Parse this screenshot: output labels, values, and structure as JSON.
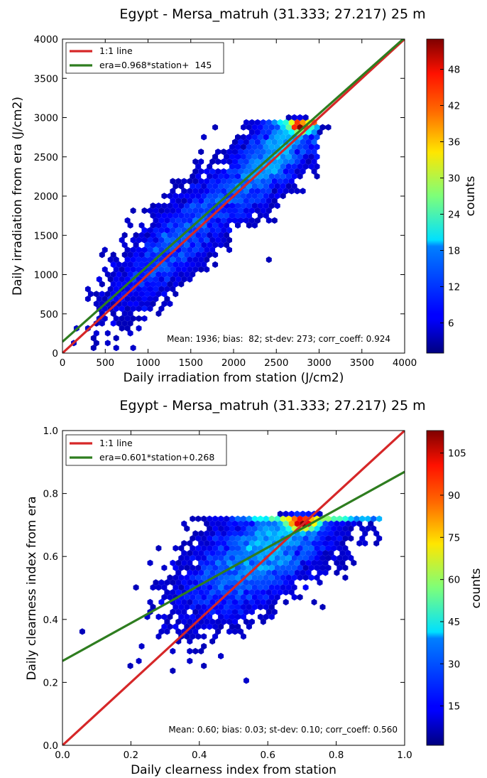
{
  "charts": [
    {
      "title": "Egypt - Mersa_matruh (31.333; 27.217) 25 m",
      "xlabel": "Daily irradiation from station (J/cm2)",
      "ylabel": "Daily irradiation from era (J/cm2)",
      "xticks": [
        "0",
        "500",
        "1000",
        "1500",
        "2000",
        "2500",
        "3000",
        "3500",
        "4000"
      ],
      "yticks": [
        "0",
        "500",
        "1000",
        "1500",
        "2000",
        "2500",
        "3000",
        "3500",
        "4000"
      ],
      "legend": [
        "1:1 line",
        "era=0.968*station+  145"
      ],
      "stats": "Mean: 1936; bias:  82; st-dev: 273; corr_coeff: 0.924",
      "colorbar_label": "counts",
      "colorbar_ticks": [
        "6",
        "12",
        "18",
        "24",
        "30",
        "36",
        "42",
        "48"
      ]
    },
    {
      "title": "Egypt - Mersa_matruh (31.333; 27.217) 25 m",
      "xlabel": "Daily clearness index from station",
      "ylabel": "Daily clearness index from era",
      "xticks": [
        "0.0",
        "0.2",
        "0.4",
        "0.6",
        "0.8",
        "1.0"
      ],
      "yticks": [
        "0.0",
        "0.2",
        "0.4",
        "0.6",
        "0.8",
        "1.0"
      ],
      "legend": [
        "1:1 line",
        "era=0.601*station+0.268"
      ],
      "stats": "Mean: 0.60; bias: 0.03; st-dev: 0.10; corr_coeff: 0.560",
      "colorbar_label": "counts",
      "colorbar_ticks": [
        "15",
        "30",
        "45",
        "60",
        "75",
        "90",
        "105"
      ]
    }
  ],
  "chart_data": [
    {
      "type": "hexbin",
      "xlim": [
        0,
        4000
      ],
      "ylim": [
        0,
        4000
      ],
      "tick_values": [
        0,
        500,
        1000,
        1500,
        2000,
        2500,
        3000,
        3500,
        4000
      ],
      "colorbar_range": [
        1,
        53
      ],
      "colorbar_tick_values": [
        6,
        12,
        18,
        24,
        30,
        36,
        42,
        48
      ],
      "lines": [
        {
          "name": "1:1 line",
          "slope": 1.0,
          "intercept": 0,
          "color": "#d62728"
        },
        {
          "name": "era=0.968*station+  145",
          "slope": 0.968,
          "intercept": 145,
          "color": "#2e7d1f"
        }
      ],
      "density_centers": [
        [
          2780,
          2880,
          53
        ],
        [
          2500,
          2600,
          22
        ],
        [
          2200,
          2300,
          15
        ],
        [
          1900,
          2000,
          11
        ],
        [
          1500,
          1550,
          9
        ],
        [
          1100,
          1150,
          12
        ]
      ]
    },
    {
      "type": "hexbin",
      "xlim": [
        0,
        1
      ],
      "ylim": [
        0,
        1
      ],
      "tick_values": [
        0,
        0.2,
        0.4,
        0.6,
        0.8,
        1.0
      ],
      "colorbar_range": [
        1,
        113
      ],
      "colorbar_tick_values": [
        15,
        30,
        45,
        60,
        75,
        90,
        105
      ],
      "lines": [
        {
          "name": "1:1 line",
          "slope": 1.0,
          "intercept": 0,
          "color": "#d62728"
        },
        {
          "name": "era=0.601*station+0.268",
          "slope": 0.601,
          "intercept": 0.268,
          "color": "#2e7d1f"
        }
      ],
      "density_centers": [
        [
          0.7,
          0.7,
          113
        ],
        [
          0.65,
          0.67,
          40
        ],
        [
          0.6,
          0.62,
          22
        ],
        [
          0.55,
          0.58,
          14
        ]
      ]
    }
  ]
}
